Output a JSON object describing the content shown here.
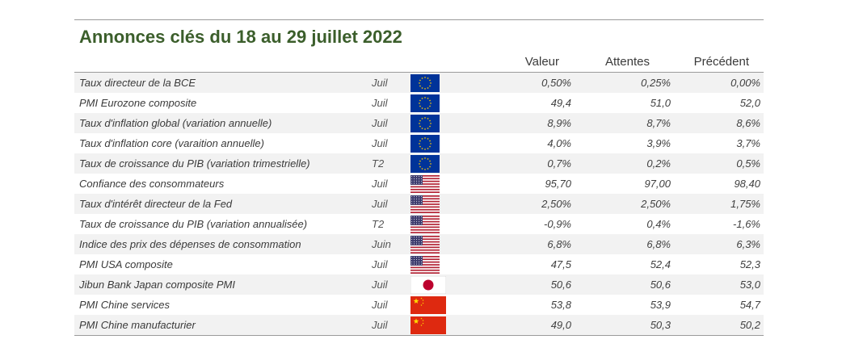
{
  "title": "Annonces clés du 18 au 29 juillet 2022",
  "columns": {
    "value": "Valeur",
    "expected": "Attentes",
    "previous": "Précédent"
  },
  "colors": {
    "title": "#3b5e2b",
    "eu_blue": "#003399",
    "eu_star": "#ffcc00",
    "us_red": "#b22234",
    "us_blue": "#3c3b6e",
    "jp_red": "#bc002d",
    "cn_red": "#de2910",
    "cn_star": "#ffde00"
  },
  "rows": [
    {
      "name": "Taux directeur de la BCE",
      "period": "Juil",
      "flag": "eu-flag-icon",
      "value": "0,50%",
      "expected": "0,25%",
      "previous": "0,00%"
    },
    {
      "name": "PMI Eurozone composite",
      "period": "Juil",
      "flag": "eu-flag-icon",
      "value": "49,4",
      "expected": "51,0",
      "previous": "52,0"
    },
    {
      "name": "Taux d'inflation global (variation annuelle)",
      "period": "Juil",
      "flag": "eu-flag-icon",
      "value": "8,9%",
      "expected": "8,7%",
      "previous": "8,6%"
    },
    {
      "name": "Taux d'inflation core (varaition annuelle)",
      "period": "Juil",
      "flag": "eu-flag-icon",
      "value": "4,0%",
      "expected": "3,9%",
      "previous": "3,7%"
    },
    {
      "name": "Taux de croissance du PIB (variation trimestrielle)",
      "period": "T2",
      "flag": "eu-flag-icon",
      "value": "0,7%",
      "expected": "0,2%",
      "previous": "0,5%"
    },
    {
      "name": "Confiance des consommateurs",
      "period": "Juil",
      "flag": "us-flag-icon",
      "value": "95,70",
      "expected": "97,00",
      "previous": "98,40"
    },
    {
      "name": "Taux d'intérêt directeur de la Fed",
      "period": "Juil",
      "flag": "us-flag-icon",
      "value": "2,50%",
      "expected": "2,50%",
      "previous": "1,75%"
    },
    {
      "name": "Taux de croissance du PIB (variation annualisée)",
      "period": "T2",
      "flag": "us-flag-icon",
      "value": "-0,9%",
      "expected": "0,4%",
      "previous": "-1,6%"
    },
    {
      "name": "Indice des prix des dépenses de consommation",
      "period": "Juin",
      "flag": "us-flag-icon",
      "value": "6,8%",
      "expected": "6,8%",
      "previous": "6,3%"
    },
    {
      "name": "PMI USA composite",
      "period": "Juil",
      "flag": "us-flag-icon",
      "value": "47,5",
      "expected": "52,4",
      "previous": "52,3"
    },
    {
      "name": "Jibun Bank Japan composite PMI",
      "period": "Juil",
      "flag": "japan-flag-icon",
      "value": "50,6",
      "expected": "50,6",
      "previous": "53,0"
    },
    {
      "name": "PMI Chine services",
      "period": "Juil",
      "flag": "china-flag-icon",
      "value": "53,8",
      "expected": "53,9",
      "previous": "54,7"
    },
    {
      "name": "PMI Chine manufacturier",
      "period": "Juil",
      "flag": "china-flag-icon",
      "value": "49,0",
      "expected": "50,3",
      "previous": "50,2"
    }
  ]
}
